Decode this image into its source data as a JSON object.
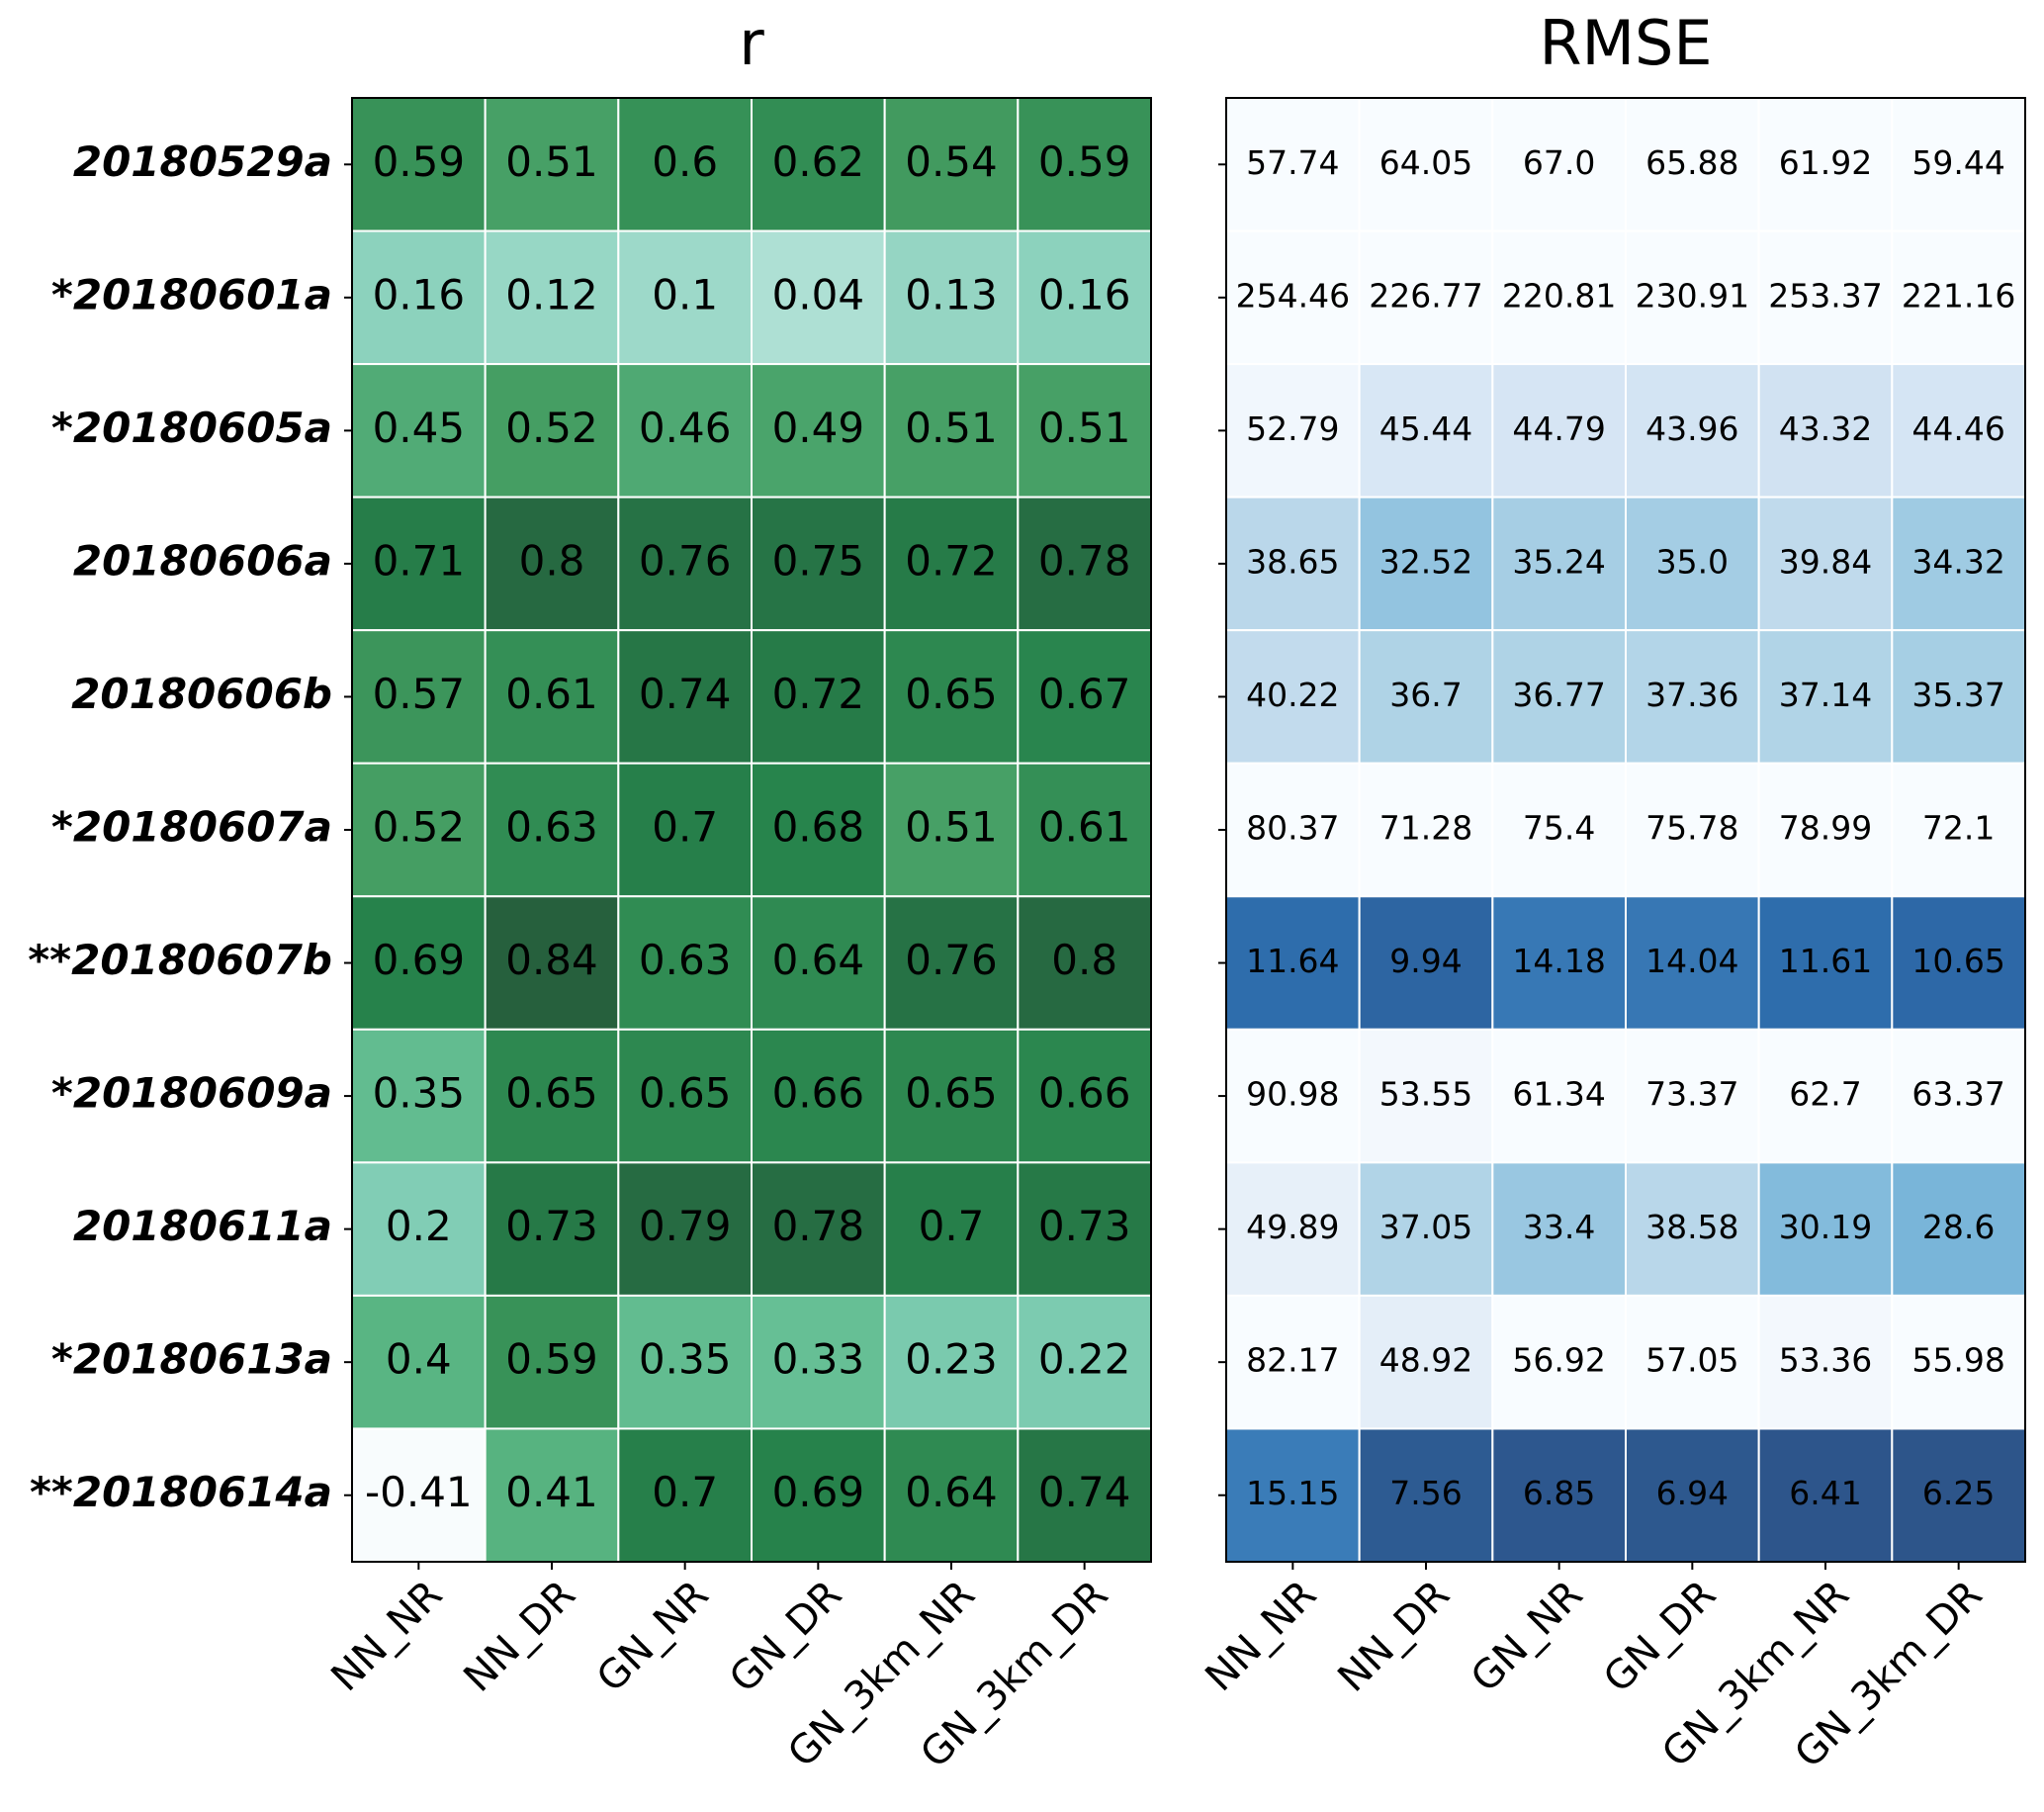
{
  "chart_data": [
    {
      "type": "heatmap",
      "title": "r",
      "rows": [
        "20180529a",
        "*20180601a",
        "*20180605a",
        "20180606a",
        "20180606b",
        "*20180607a",
        "**20180607b",
        "*20180609a",
        "20180611a",
        "*20180613a",
        "**20180614a"
      ],
      "columns": [
        "NN_NR",
        "NN_DR",
        "GN_NR",
        "GN_DR",
        "GN_3km_NR",
        "GN_3km_DR"
      ],
      "values": [
        [
          0.59,
          0.51,
          0.6,
          0.62,
          0.54,
          0.59
        ],
        [
          0.16,
          0.12,
          0.1,
          0.04,
          0.13,
          0.16
        ],
        [
          0.45,
          0.52,
          0.46,
          0.49,
          0.51,
          0.51
        ],
        [
          0.71,
          0.8,
          0.76,
          0.75,
          0.72,
          0.78
        ],
        [
          0.57,
          0.61,
          0.74,
          0.72,
          0.65,
          0.67
        ],
        [
          0.52,
          0.63,
          0.7,
          0.68,
          0.51,
          0.61
        ],
        [
          0.69,
          0.84,
          0.63,
          0.64,
          0.76,
          0.8
        ],
        [
          0.35,
          0.65,
          0.65,
          0.66,
          0.65,
          0.66
        ],
        [
          0.2,
          0.73,
          0.79,
          0.78,
          0.7,
          0.73
        ],
        [
          0.4,
          0.59,
          0.35,
          0.33,
          0.23,
          0.22
        ],
        [
          -0.41,
          0.41,
          0.7,
          0.69,
          0.64,
          0.74
        ]
      ],
      "clim": [
        -0.41,
        0.84
      ],
      "colormap": [
        "#f7fcfd",
        "#e5f5f9",
        "#ccece6",
        "#99d8c9",
        "#66c2a4",
        "#41ae76",
        "#238b45",
        "#006d2c",
        "#00441b"
      ]
    },
    {
      "type": "heatmap",
      "title": "RMSE",
      "columns": [
        "NN_NR",
        "NN_DR",
        "GN_NR",
        "GN_DR",
        "GN_3km_NR",
        "GN_3km_DR"
      ],
      "values": [
        [
          57.74,
          64.05,
          67.0,
          65.88,
          61.92,
          59.44
        ],
        [
          254.46,
          226.77,
          220.81,
          230.91,
          253.37,
          221.16
        ],
        [
          52.79,
          45.44,
          44.79,
          43.96,
          43.32,
          44.46
        ],
        [
          38.65,
          32.52,
          35.24,
          35.0,
          39.84,
          34.32
        ],
        [
          40.22,
          36.7,
          36.77,
          37.36,
          37.14,
          35.37
        ],
        [
          80.37,
          71.28,
          75.4,
          75.78,
          78.99,
          72.1
        ],
        [
          11.64,
          9.94,
          14.18,
          14.04,
          11.61,
          10.65
        ],
        [
          90.98,
          53.55,
          61.34,
          73.37,
          62.7,
          63.37
        ],
        [
          49.89,
          37.05,
          33.4,
          38.58,
          30.19,
          28.6
        ],
        [
          82.17,
          48.92,
          56.92,
          57.05,
          53.36,
          55.98
        ],
        [
          15.15,
          7.56,
          6.85,
          6.94,
          6.41,
          6.25
        ]
      ],
      "value_labels": [
        [
          "57.74",
          "64.05",
          "67.0",
          "65.88",
          "61.92",
          "59.44"
        ],
        [
          "254.46",
          "226.77",
          "220.81",
          "230.91",
          "253.37",
          "221.16"
        ],
        [
          "52.79",
          "45.44",
          "44.79",
          "43.96",
          "43.32",
          "44.46"
        ],
        [
          "38.65",
          "32.52",
          "35.24",
          "35.0",
          "39.84",
          "34.32"
        ],
        [
          "40.22",
          "36.7",
          "36.77",
          "37.36",
          "37.14",
          "35.37"
        ],
        [
          "80.37",
          "71.28",
          "75.4",
          "75.78",
          "78.99",
          "72.1"
        ],
        [
          "11.64",
          "9.94",
          "14.18",
          "14.04",
          "11.61",
          "10.65"
        ],
        [
          "90.98",
          "53.55",
          "61.34",
          "73.37",
          "62.7",
          "63.37"
        ],
        [
          "49.89",
          "37.05",
          "33.4",
          "38.58",
          "30.19",
          "28.6"
        ],
        [
          "82.17",
          "48.92",
          "56.92",
          "57.05",
          "53.36",
          "55.98"
        ],
        [
          "15.15",
          "7.56",
          "6.85",
          "6.94",
          "6.41",
          "6.25"
        ]
      ],
      "clim": [
        5,
        55
      ],
      "colormap": [
        "#08306b",
        "#08519c",
        "#2171b5",
        "#4292c6",
        "#6baed6",
        "#9ecae1",
        "#c6dbef",
        "#deebf7",
        "#f7fbff"
      ]
    }
  ]
}
